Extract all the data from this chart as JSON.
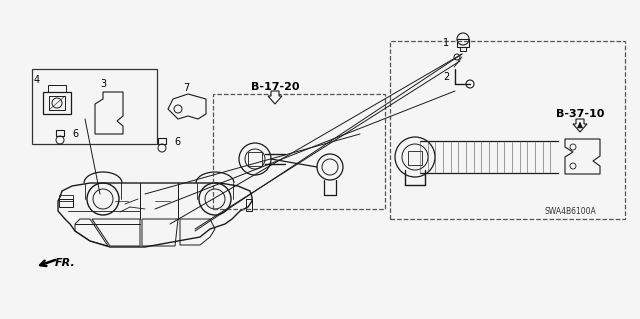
{
  "background_color": "#f5f5f5",
  "diagram_code": "SWA4B6100A",
  "section_b1720": "B-17-20",
  "section_b3710": "B-37-10",
  "fr_label": "FR.",
  "line_color": "#1a1a1a",
  "gray": "#888888",
  "dashed_color": "#555555"
}
